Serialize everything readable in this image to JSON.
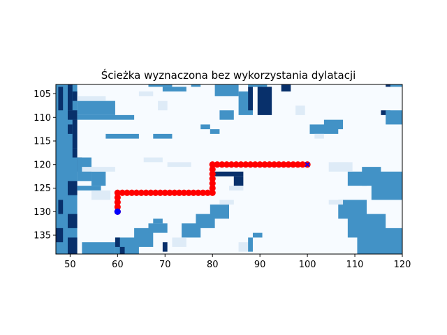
{
  "chart_data": {
    "type": "heatmap",
    "title": "Ścieżka wyznaczona bez wykorzystania dylatacji",
    "xlabel": "",
    "ylabel": "",
    "xlim": [
      47,
      120
    ],
    "ylim": [
      139,
      103
    ],
    "x_ticks": [
      50,
      60,
      70,
      80,
      90,
      100,
      110,
      120
    ],
    "y_ticks": [
      105,
      110,
      115,
      120,
      125,
      130,
      135
    ],
    "colormap": "Blues",
    "colors": {
      "light": "#f7fbff",
      "pale": "#deebf7",
      "mid": "#4292c6",
      "dark": "#08306b"
    },
    "path": {
      "color": "#ff0000",
      "points": [
        [
          60,
          130
        ],
        [
          60,
          129
        ],
        [
          60,
          128
        ],
        [
          60,
          127
        ],
        [
          60,
          126
        ],
        [
          61,
          126
        ],
        [
          62,
          126
        ],
        [
          63,
          126
        ],
        [
          64,
          126
        ],
        [
          65,
          126
        ],
        [
          66,
          126
        ],
        [
          67,
          126
        ],
        [
          68,
          126
        ],
        [
          69,
          126
        ],
        [
          70,
          126
        ],
        [
          71,
          126
        ],
        [
          72,
          126
        ],
        [
          73,
          126
        ],
        [
          74,
          126
        ],
        [
          75,
          126
        ],
        [
          76,
          126
        ],
        [
          77,
          126
        ],
        [
          78,
          126
        ],
        [
          79,
          126
        ],
        [
          80,
          126
        ],
        [
          80,
          125
        ],
        [
          80,
          124
        ],
        [
          80,
          123
        ],
        [
          80,
          122
        ],
        [
          80,
          121
        ],
        [
          80,
          120
        ],
        [
          81,
          120
        ],
        [
          82,
          120
        ],
        [
          83,
          120
        ],
        [
          84,
          120
        ],
        [
          85,
          120
        ],
        [
          86,
          120
        ],
        [
          87,
          120
        ],
        [
          88,
          120
        ],
        [
          89,
          120
        ],
        [
          90,
          120
        ],
        [
          91,
          120
        ],
        [
          92,
          120
        ],
        [
          93,
          120
        ],
        [
          94,
          120
        ],
        [
          95,
          120
        ],
        [
          96,
          120
        ],
        [
          97,
          120
        ],
        [
          98,
          120
        ],
        [
          99,
          120
        ],
        [
          100,
          120
        ]
      ]
    },
    "start": {
      "x": 60,
      "y": 130,
      "color": "#0000ff"
    },
    "goal": {
      "x": 100,
      "y": 120,
      "color": "#0000ff"
    },
    "grid_regions": [
      {
        "level": "mid",
        "x": [
          47,
          51
        ],
        "y": [
          103,
          139
        ]
      },
      {
        "level": "dark",
        "x": [
          50,
          50
        ],
        "y": [
          103,
          103
        ]
      },
      {
        "level": "dark",
        "x": [
          48,
          48
        ],
        "y": [
          104,
          108
        ]
      },
      {
        "level": "dark",
        "x": [
          50,
          50
        ],
        "y": [
          104,
          108
        ]
      },
      {
        "level": "dark",
        "x": [
          51,
          51
        ],
        "y": [
          105,
          106
        ]
      },
      {
        "level": "dark",
        "x": [
          50,
          51
        ],
        "y": [
          109,
          110
        ]
      },
      {
        "level": "dark",
        "x": [
          51,
          51
        ],
        "y": [
          111,
          116
        ]
      },
      {
        "level": "dark",
        "x": [
          50,
          50
        ],
        "y": [
          112,
          113
        ]
      },
      {
        "level": "dark",
        "x": [
          51,
          51
        ],
        "y": [
          117,
          118
        ]
      },
      {
        "level": "dark",
        "x": [
          52,
          52
        ],
        "y": [
          119,
          121
        ]
      },
      {
        "level": "dark",
        "x": [
          50,
          51
        ],
        "y": [
          124,
          126
        ]
      },
      {
        "level": "dark",
        "x": [
          48,
          48
        ],
        "y": [
          128,
          130
        ]
      },
      {
        "level": "dark",
        "x": [
          50,
          51
        ],
        "y": [
          131,
          133
        ]
      },
      {
        "level": "dark",
        "x": [
          47,
          48
        ],
        "y": [
          134,
          136
        ]
      },
      {
        "level": "dark",
        "x": [
          50,
          51
        ],
        "y": [
          136,
          139
        ]
      },
      {
        "level": "mid",
        "x": [
          52,
          59
        ],
        "y": [
          107,
          109
        ]
      },
      {
        "level": "mid",
        "x": [
          52,
          63
        ],
        "y": [
          110,
          110
        ]
      },
      {
        "level": "mid",
        "x": [
          58,
          64
        ],
        "y": [
          114,
          114
        ]
      },
      {
        "level": "mid",
        "x": [
          52,
          54
        ],
        "y": [
          119,
          123
        ]
      },
      {
        "level": "mid",
        "x": [
          55,
          57
        ],
        "y": [
          122,
          124
        ]
      },
      {
        "level": "mid",
        "x": [
          52,
          56
        ],
        "y": [
          125,
          125
        ]
      },
      {
        "level": "pale",
        "x": [
          52,
          57
        ],
        "y": [
          106,
          106
        ]
      },
      {
        "level": "pale",
        "x": [
          53,
          59
        ],
        "y": [
          121,
          121
        ]
      },
      {
        "level": "pale",
        "x": [
          55,
          58
        ],
        "y": [
          126,
          127
        ]
      },
      {
        "level": "mid",
        "x": [
          67,
          71
        ],
        "y": [
          103,
          103
        ]
      },
      {
        "level": "mid",
        "x": [
          70,
          74
        ],
        "y": [
          104,
          104
        ]
      },
      {
        "level": "mid",
        "x": [
          76,
          77
        ],
        "y": [
          103,
          103
        ]
      },
      {
        "level": "mid",
        "x": [
          81,
          85
        ],
        "y": [
          103,
          105
        ]
      },
      {
        "level": "mid",
        "x": [
          86,
          88
        ],
        "y": [
          105,
          109
        ]
      },
      {
        "level": "dark",
        "x": [
          89,
          90
        ],
        "y": [
          103,
          103
        ]
      },
      {
        "level": "dark",
        "x": [
          88,
          88
        ],
        "y": [
          104,
          108
        ]
      },
      {
        "level": "dark",
        "x": [
          90,
          92
        ],
        "y": [
          104,
          109
        ]
      },
      {
        "level": "dark",
        "x": [
          95,
          96
        ],
        "y": [
          103,
          104
        ]
      },
      {
        "level": "mid",
        "x": [
          88,
          91
        ],
        "y": [
          103,
          103
        ]
      },
      {
        "level": "mid",
        "x": [
          82,
          84
        ],
        "y": [
          109,
          110
        ]
      },
      {
        "level": "pale",
        "x": [
          65,
          67
        ],
        "y": [
          105,
          105
        ]
      },
      {
        "level": "pale",
        "x": [
          69,
          70
        ],
        "y": [
          107,
          108
        ]
      },
      {
        "level": "mid",
        "x": [
          68,
          71
        ],
        "y": [
          114,
          114
        ]
      },
      {
        "level": "mid",
        "x": [
          78,
          79
        ],
        "y": [
          112,
          112
        ]
      },
      {
        "level": "mid",
        "x": [
          80,
          81
        ],
        "y": [
          113,
          113
        ]
      },
      {
        "level": "pale",
        "x": [
          71,
          75
        ],
        "y": [
          120,
          120
        ]
      },
      {
        "level": "pale",
        "x": [
          66,
          69
        ],
        "y": [
          119,
          119
        ]
      },
      {
        "level": "dark",
        "x": [
          81,
          86
        ],
        "y": [
          122,
          122
        ]
      },
      {
        "level": "dark",
        "x": [
          85,
          86
        ],
        "y": [
          123,
          124
        ]
      },
      {
        "level": "pale",
        "x": [
          84,
          86
        ],
        "y": [
          125,
          125
        ]
      },
      {
        "level": "mid",
        "x": [
          101,
          106
        ],
        "y": [
          112,
          113
        ]
      },
      {
        "level": "mid",
        "x": [
          104,
          107
        ],
        "y": [
          111,
          112
        ]
      },
      {
        "level": "pale",
        "x": [
          102,
          103
        ],
        "y": [
          114,
          114
        ]
      },
      {
        "level": "pale",
        "x": [
          98,
          99
        ],
        "y": [
          108,
          109
        ]
      },
      {
        "level": "dark",
        "x": [
          116,
          117
        ],
        "y": [
          109,
          109
        ]
      },
      {
        "level": "mid",
        "x": [
          117,
          120
        ],
        "y": [
          109,
          111
        ]
      },
      {
        "level": "mid",
        "x": [
          118,
          120
        ],
        "y": [
          103,
          103
        ]
      },
      {
        "level": "dark",
        "x": [
          117,
          117
        ],
        "y": [
          103,
          103
        ]
      },
      {
        "level": "mid",
        "x": [
          114,
          120
        ],
        "y": [
          122,
          127
        ]
      },
      {
        "level": "mid",
        "x": [
          112,
          115
        ],
        "y": [
          121,
          124
        ]
      },
      {
        "level": "mid",
        "x": [
          109,
          112
        ],
        "y": [
          122,
          124
        ]
      },
      {
        "level": "pale",
        "x": [
          105,
          109
        ],
        "y": [
          120,
          121
        ]
      },
      {
        "level": "pale",
        "x": [
          106,
          108
        ],
        "y": [
          120,
          120
        ]
      },
      {
        "level": "mid",
        "x": [
          107,
          112
        ],
        "y": [
          128,
          131
        ]
      },
      {
        "level": "mid",
        "x": [
          109,
          116
        ],
        "y": [
          131,
          135
        ]
      },
      {
        "level": "mid",
        "x": [
          111,
          120
        ],
        "y": [
          134,
          139
        ]
      },
      {
        "level": "pale",
        "x": [
          105,
          107
        ],
        "y": [
          128,
          128
        ]
      },
      {
        "level": "mid",
        "x": [
          53,
          59
        ],
        "y": [
          137,
          139
        ]
      },
      {
        "level": "mid",
        "x": [
          60,
          64
        ],
        "y": [
          136,
          139
        ]
      },
      {
        "level": "mid",
        "x": [
          64,
          67
        ],
        "y": [
          134,
          137
        ]
      },
      {
        "level": "mid",
        "x": [
          67,
          70
        ],
        "y": [
          133,
          134
        ]
      },
      {
        "level": "mid",
        "x": [
          68,
          69
        ],
        "y": [
          132,
          132
        ]
      },
      {
        "level": "dark",
        "x": [
          60,
          60
        ],
        "y": [
          136,
          137
        ]
      },
      {
        "level": "dark",
        "x": [
          61,
          61
        ],
        "y": [
          138,
          139
        ]
      },
      {
        "level": "dark",
        "x": [
          70,
          70
        ],
        "y": [
          137,
          138
        ]
      },
      {
        "level": "mid",
        "x": [
          74,
          77
        ],
        "y": [
          133,
          135
        ]
      },
      {
        "level": "mid",
        "x": [
          77,
          80
        ],
        "y": [
          131,
          133
        ]
      },
      {
        "level": "mid",
        "x": [
          80,
          83
        ],
        "y": [
          129,
          131
        ]
      },
      {
        "level": "pale",
        "x": [
          82,
          84
        ],
        "y": [
          128,
          128
        ]
      },
      {
        "level": "pale",
        "x": [
          72,
          74
        ],
        "y": [
          136,
          137
        ]
      },
      {
        "level": "pale",
        "x": [
          86,
          88
        ],
        "y": [
          137,
          138
        ]
      },
      {
        "level": "mid",
        "x": [
          88,
          88
        ],
        "y": [
          136,
          138
        ]
      },
      {
        "level": "mid",
        "x": [
          89,
          90
        ],
        "y": [
          135,
          135
        ]
      }
    ]
  }
}
